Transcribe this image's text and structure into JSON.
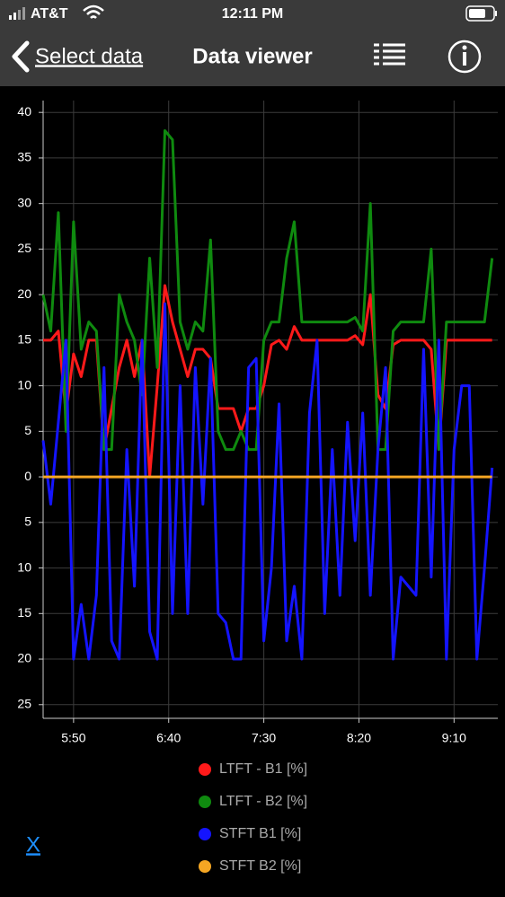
{
  "status_bar": {
    "carrier": "AT&T",
    "time": "12:11 PM"
  },
  "nav": {
    "back": "Select data",
    "title": "Data viewer"
  },
  "chart_data": {
    "type": "line",
    "x": [
      "5:34",
      "5:38",
      "5:42",
      "5:46",
      "5:50",
      "5:54",
      "5:58",
      "6:02",
      "6:06",
      "6:10",
      "6:14",
      "6:18",
      "6:22",
      "6:26",
      "6:30",
      "6:34",
      "6:38",
      "6:42",
      "6:46",
      "6:50",
      "6:54",
      "6:58",
      "7:02",
      "7:06",
      "7:10",
      "7:14",
      "7:18",
      "7:22",
      "7:26",
      "7:30",
      "7:34",
      "7:38",
      "7:42",
      "7:46",
      "7:50",
      "7:54",
      "7:58",
      "8:02",
      "8:06",
      "8:10",
      "8:14",
      "8:18",
      "8:22",
      "8:26",
      "8:30",
      "8:34",
      "8:38",
      "8:42",
      "8:46",
      "8:50",
      "8:54",
      "8:58",
      "9:02",
      "9:06",
      "9:10",
      "9:14",
      "9:18",
      "9:22",
      "9:26",
      "9:30"
    ],
    "series": [
      {
        "name": "LTFT - B1 [%]",
        "color": "#ff1a1a",
        "values": [
          15,
          15,
          16,
          7,
          13.5,
          11,
          15,
          15,
          3,
          7.5,
          12,
          15,
          11,
          15,
          0,
          10,
          21,
          17,
          14,
          11,
          14,
          14,
          13,
          7.5,
          7.5,
          7.5,
          5,
          7.5,
          7.5,
          10,
          14.5,
          15,
          14,
          16.5,
          15,
          15,
          15,
          15,
          15,
          15,
          15,
          15.5,
          14.5,
          20,
          9,
          7.5,
          14.5,
          15,
          15,
          15,
          15,
          14,
          3,
          15,
          15,
          15,
          15,
          15,
          15,
          15
        ]
      },
      {
        "name": "LTFT - B2 [%]",
        "color": "#0f8a0f",
        "values": [
          20,
          16,
          29,
          5,
          28,
          14,
          17,
          16,
          3,
          3,
          20,
          17,
          15,
          9,
          24,
          12,
          38,
          37,
          17,
          14,
          17,
          16,
          26,
          5,
          3,
          3,
          5,
          3,
          3,
          15,
          17,
          17,
          24,
          28,
          17,
          17,
          17,
          17,
          17,
          17,
          17,
          17.5,
          16,
          30,
          3,
          3,
          16,
          17,
          17,
          17,
          17,
          25,
          3,
          17,
          17,
          17,
          17,
          17,
          17,
          24
        ]
      },
      {
        "name": "STFT B1 [%]",
        "color": "#1414ff",
        "values": [
          4,
          -3,
          6,
          15,
          -20,
          -14,
          -20,
          -13,
          12,
          -18,
          -20,
          3,
          -12,
          15,
          -17,
          -20,
          19,
          -15,
          10,
          -15,
          12,
          -3,
          13,
          -15,
          -16,
          -20,
          -20,
          12,
          13,
          -18,
          -10,
          8,
          -18,
          -12,
          -20,
          7,
          15,
          -15,
          3,
          -13,
          6,
          -7,
          7,
          -13,
          3,
          12,
          -20,
          -11,
          -12,
          -13,
          14,
          -11,
          15,
          -20,
          3,
          10,
          10,
          -20,
          -10,
          1
        ]
      },
      {
        "name": "STFT B2 [%]",
        "color": "#f5a623",
        "values": [
          0,
          0,
          0,
          0,
          0,
          0,
          0,
          0,
          0,
          0,
          0,
          0,
          0,
          0,
          0,
          0,
          0,
          0,
          0,
          0,
          0,
          0,
          0,
          0,
          0,
          0,
          0,
          0,
          0,
          0,
          0,
          0,
          0,
          0,
          0,
          0,
          0,
          0,
          0,
          0,
          0,
          0,
          0,
          0,
          0,
          0,
          0,
          0,
          0,
          0,
          0,
          0,
          0,
          0,
          0,
          0,
          0,
          0,
          0,
          0
        ]
      }
    ],
    "xlim": [
      "5:34",
      "9:33"
    ],
    "xticks": [
      "5:50",
      "6:40",
      "7:30",
      "8:20",
      "9:10"
    ],
    "ylim": [
      -26.5,
      41.3
    ],
    "yticks": [
      40,
      35,
      30,
      25,
      20,
      15,
      10,
      5,
      0,
      {
        "value": -5,
        "label": "5"
      },
      {
        "value": -10,
        "label": "10"
      },
      {
        "value": -15,
        "label": "15"
      },
      {
        "value": -20,
        "label": "20"
      },
      {
        "value": -25,
        "label": "25"
      }
    ],
    "grid": true
  },
  "close": "X"
}
